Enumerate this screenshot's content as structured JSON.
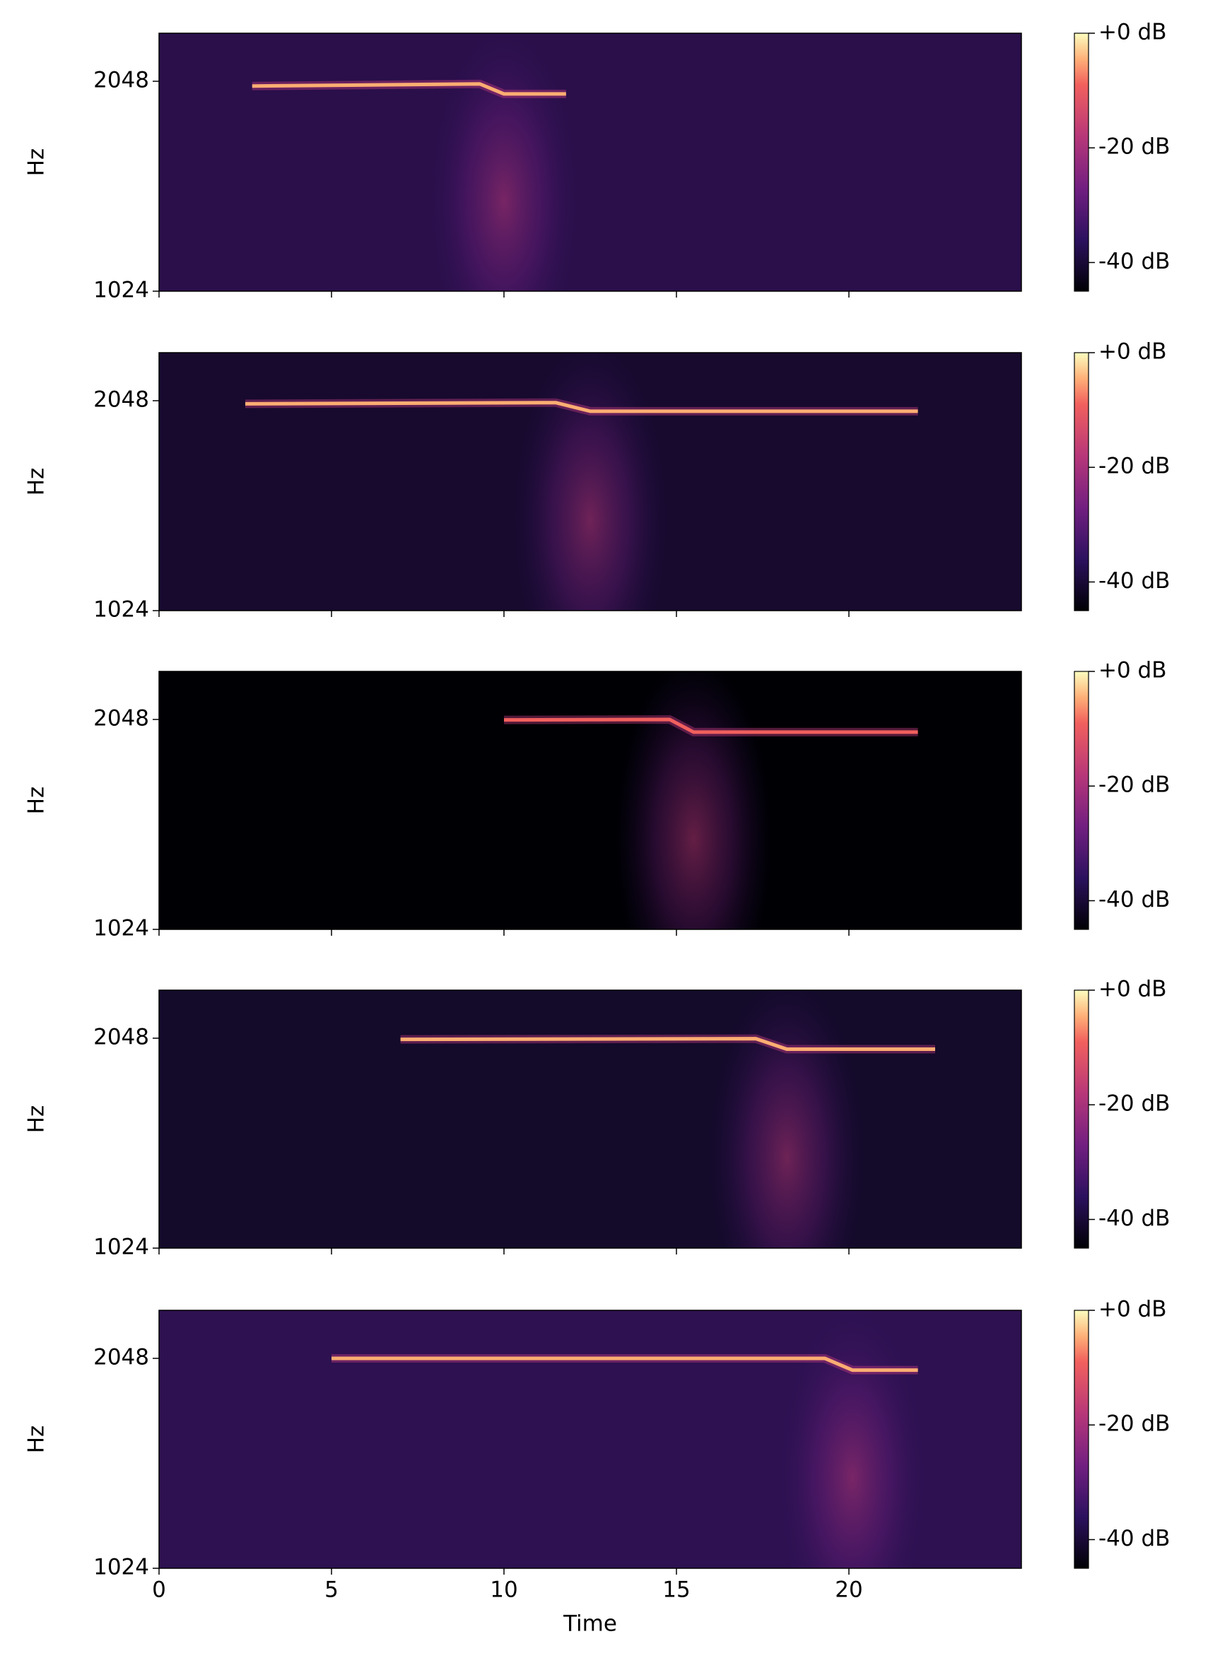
{
  "chart_data": [
    {
      "type": "spectrogram",
      "ylabel": "Hz",
      "yscale": "log",
      "ylim": [
        1024,
        2400
      ],
      "yticks": [
        1024,
        2048
      ],
      "xlim": [
        0,
        25
      ],
      "xticks": [
        0,
        5,
        10,
        15,
        20
      ],
      "background": "#2a0f4a",
      "track": {
        "color": "#fcae72",
        "x": [
          2.7,
          9.3,
          10.0,
          11.8
        ],
        "values": [
          2016,
          2030,
          1964,
          1964
        ]
      },
      "colorbar": {
        "lim": [
          -45,
          0
        ],
        "ticks": [
          {
            "value": 0,
            "label": "+0 dB"
          },
          {
            "value": -20,
            "label": "-20 dB"
          },
          {
            "value": -40,
            "label": "-40 dB"
          }
        ]
      }
    },
    {
      "type": "spectrogram",
      "ylabel": "Hz",
      "yscale": "log",
      "ylim": [
        1024,
        2400
      ],
      "yticks": [
        1024,
        2048
      ],
      "xlim": [
        0,
        25
      ],
      "xticks": [
        0,
        5,
        10,
        15,
        20
      ],
      "background": "#170a2e",
      "track": {
        "color": "#fcae72",
        "x": [
          2.5,
          11.5,
          12.5,
          22.0
        ],
        "values": [
          2027,
          2035,
          1978,
          1978
        ]
      },
      "colorbar": {
        "lim": [
          -45,
          0
        ],
        "ticks": [
          {
            "value": 0,
            "label": "+0 dB"
          },
          {
            "value": -20,
            "label": "-20 dB"
          },
          {
            "value": -40,
            "label": "-40 dB"
          }
        ]
      }
    },
    {
      "type": "spectrogram",
      "ylabel": "Hz",
      "yscale": "log",
      "ylim": [
        1024,
        2400
      ],
      "yticks": [
        1024,
        2048
      ],
      "xlim": [
        0,
        25
      ],
      "xticks": [
        0,
        5,
        10,
        15,
        20
      ],
      "background": "#000004",
      "track": {
        "color": "#f1605d",
        "x": [
          10.0,
          14.8,
          15.5,
          22.0
        ],
        "values": [
          2045,
          2048,
          1964,
          1964
        ]
      },
      "colorbar": {
        "lim": [
          -45,
          0
        ],
        "ticks": [
          {
            "value": 0,
            "label": "+0 dB"
          },
          {
            "value": -20,
            "label": "-20 dB"
          },
          {
            "value": -40,
            "label": "-40 dB"
          }
        ]
      }
    },
    {
      "type": "spectrogram",
      "ylabel": "Hz",
      "yscale": "log",
      "ylim": [
        1024,
        2400
      ],
      "yticks": [
        1024,
        2048
      ],
      "xlim": [
        0,
        25
      ],
      "xticks": [
        0,
        5,
        10,
        15,
        20
      ],
      "background": "#140a2a",
      "track": {
        "color": "#fcae72",
        "x": [
          7.0,
          17.3,
          18.2,
          22.5
        ],
        "values": [
          2040,
          2045,
          1975,
          1975
        ]
      },
      "colorbar": {
        "lim": [
          -45,
          0
        ],
        "ticks": [
          {
            "value": 0,
            "label": "+0 dB"
          },
          {
            "value": -20,
            "label": "-20 dB"
          },
          {
            "value": -40,
            "label": "-40 dB"
          }
        ]
      }
    },
    {
      "type": "spectrogram",
      "ylabel": "Hz",
      "xlabel": "Time",
      "yscale": "log",
      "ylim": [
        1024,
        2400
      ],
      "yticks": [
        1024,
        2048
      ],
      "xlim": [
        0,
        25
      ],
      "xticks": [
        0,
        5,
        10,
        15,
        20
      ],
      "background": "#2d1150",
      "track": {
        "color": "#fcae72",
        "x": [
          5.0,
          19.3,
          20.1,
          22.0
        ],
        "values": [
          2048,
          2048,
          1970,
          1970
        ]
      },
      "colorbar": {
        "lim": [
          -45,
          0
        ],
        "ticks": [
          {
            "value": 0,
            "label": "+0 dB"
          },
          {
            "value": -20,
            "label": "-20 dB"
          },
          {
            "value": -40,
            "label": "-40 dB"
          }
        ]
      }
    }
  ]
}
